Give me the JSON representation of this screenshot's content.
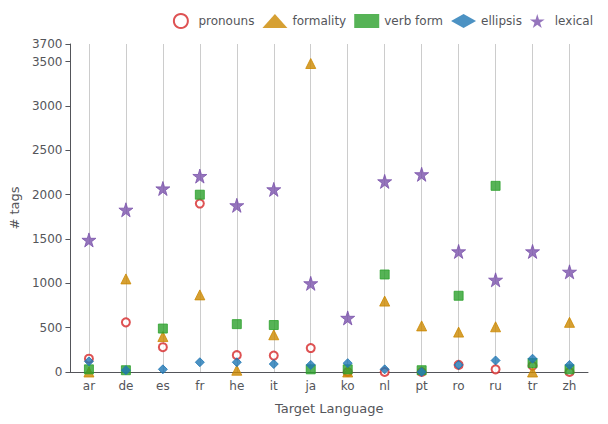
{
  "chart_data": {
    "type": "scatter",
    "xlabel": "Target Language",
    "ylabel": "# tags",
    "categories": [
      "ar",
      "de",
      "es",
      "fr",
      "he",
      "it",
      "ja",
      "ko",
      "nl",
      "pt",
      "ro",
      "ru",
      "tr",
      "zh"
    ],
    "ylim": [
      0,
      3700
    ],
    "yticks": [
      0,
      500,
      1000,
      1500,
      2000,
      2500,
      3000,
      3500
    ],
    "grid": true,
    "legend": "upper right",
    "series": [
      {
        "name": "pronouns",
        "color": "#d62728",
        "marker": "ring",
        "values": [
          150,
          560,
          280,
          1900,
          190,
          185,
          270,
          0,
          0,
          0,
          80,
          30,
          70,
          0
        ]
      },
      {
        "name": "formality",
        "color": "#cc8800",
        "marker": "triangle",
        "values": [
          0,
          1050,
          400,
          870,
          20,
          420,
          3480,
          0,
          800,
          520,
          450,
          510,
          0,
          560
        ]
      },
      {
        "name": "verb form",
        "color": "#2ca02c",
        "marker": "square",
        "values": [
          30,
          20,
          490,
          2000,
          540,
          530,
          30,
          30,
          1100,
          20,
          860,
          2100,
          100,
          30
        ]
      },
      {
        "name": "ellipsis",
        "color": "#1f77b4",
        "marker": "diamond",
        "values": [
          120,
          20,
          30,
          110,
          110,
          90,
          80,
          100,
          30,
          0,
          80,
          130,
          150,
          80
        ]
      },
      {
        "name": "lexical",
        "color": "#7b52ab",
        "marker": "star",
        "values": [
          1490,
          1830,
          2070,
          2210,
          1880,
          2060,
          1000,
          610,
          2150,
          2230,
          1360,
          1040,
          1360,
          1130
        ]
      }
    ]
  }
}
